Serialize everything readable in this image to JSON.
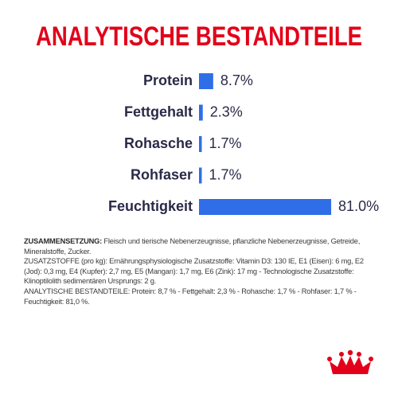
{
  "chart_data": {
    "type": "bar",
    "orientation": "horizontal",
    "title": "ANALYTISCHE BESTANDTEILE",
    "categories": [
      "Protein",
      "Fettgehalt",
      "Rohasche",
      "Rohfaser",
      "Feuchtigkeit"
    ],
    "values": [
      8.7,
      2.3,
      1.7,
      1.7,
      81.0
    ],
    "value_labels": [
      "8.7%",
      "2.3%",
      "1.7%",
      "1.7%",
      "81.0%"
    ],
    "color": "#2f6ee6"
  },
  "composition": {
    "label": "ZUSAMMENSETZUNG:",
    "text": "Fleisch und tierische Nebenerzeugnisse, pflanzliche Nebenerzeugnisse, Getreide, Mineralstoffe, Zucker."
  },
  "additives": {
    "text": "ZUSATZSTOFFE (pro kg): Ernährungsphysiologische Zusatzstoffe: Vitamin D3: 130 IE, E1 (Eisen): 6 mg, E2 (Jod): 0,3 mg, E4 (Kupfer): 2,7 mg, E5 (Mangan): 1,7 mg, E6 (Zink): 17 mg - Technologische Zusatzstoffe: Klinoptilolith sedimentären Ursprungs: 2 g."
  },
  "analysis": {
    "text": "ANALYTISCHE BESTANDTEILE: Protein: 8,7 % - Fettgehalt: 2,3 % - Rohasche: 1,7 % - Rohfaser: 1,7 % - Feuchtigkeit: 81,0 %."
  }
}
